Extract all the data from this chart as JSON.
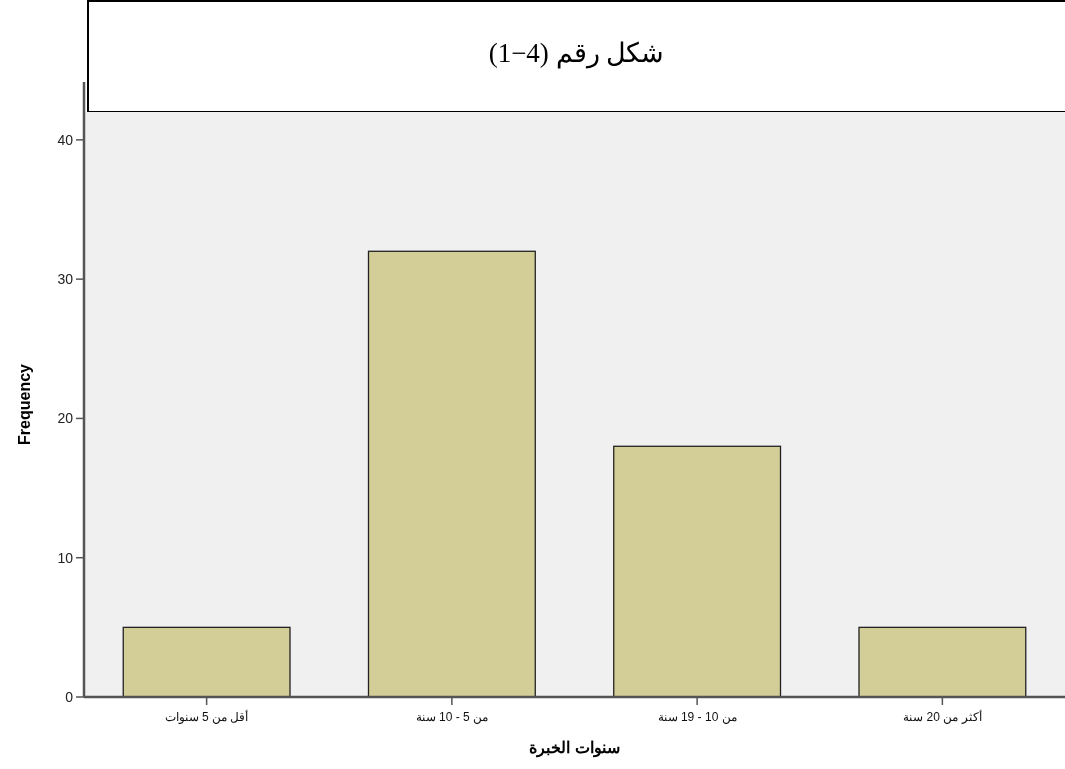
{
  "chart_data": {
    "type": "bar",
    "title": "شكل رقم (4−1)",
    "xlabel": "سنوات الخبرة",
    "ylabel": "Frequency",
    "categories": [
      "أقل من 5 سنوات",
      "من 5 - 10 سنة",
      "من 10 - 19 سنة",
      "أكثر من 20 سنة"
    ],
    "values": [
      5,
      32,
      18,
      5
    ],
    "color": "#d3ce97",
    "ylim": [
      0,
      42
    ],
    "yticks": [
      0,
      10,
      20,
      30,
      40
    ],
    "grid": false
  }
}
